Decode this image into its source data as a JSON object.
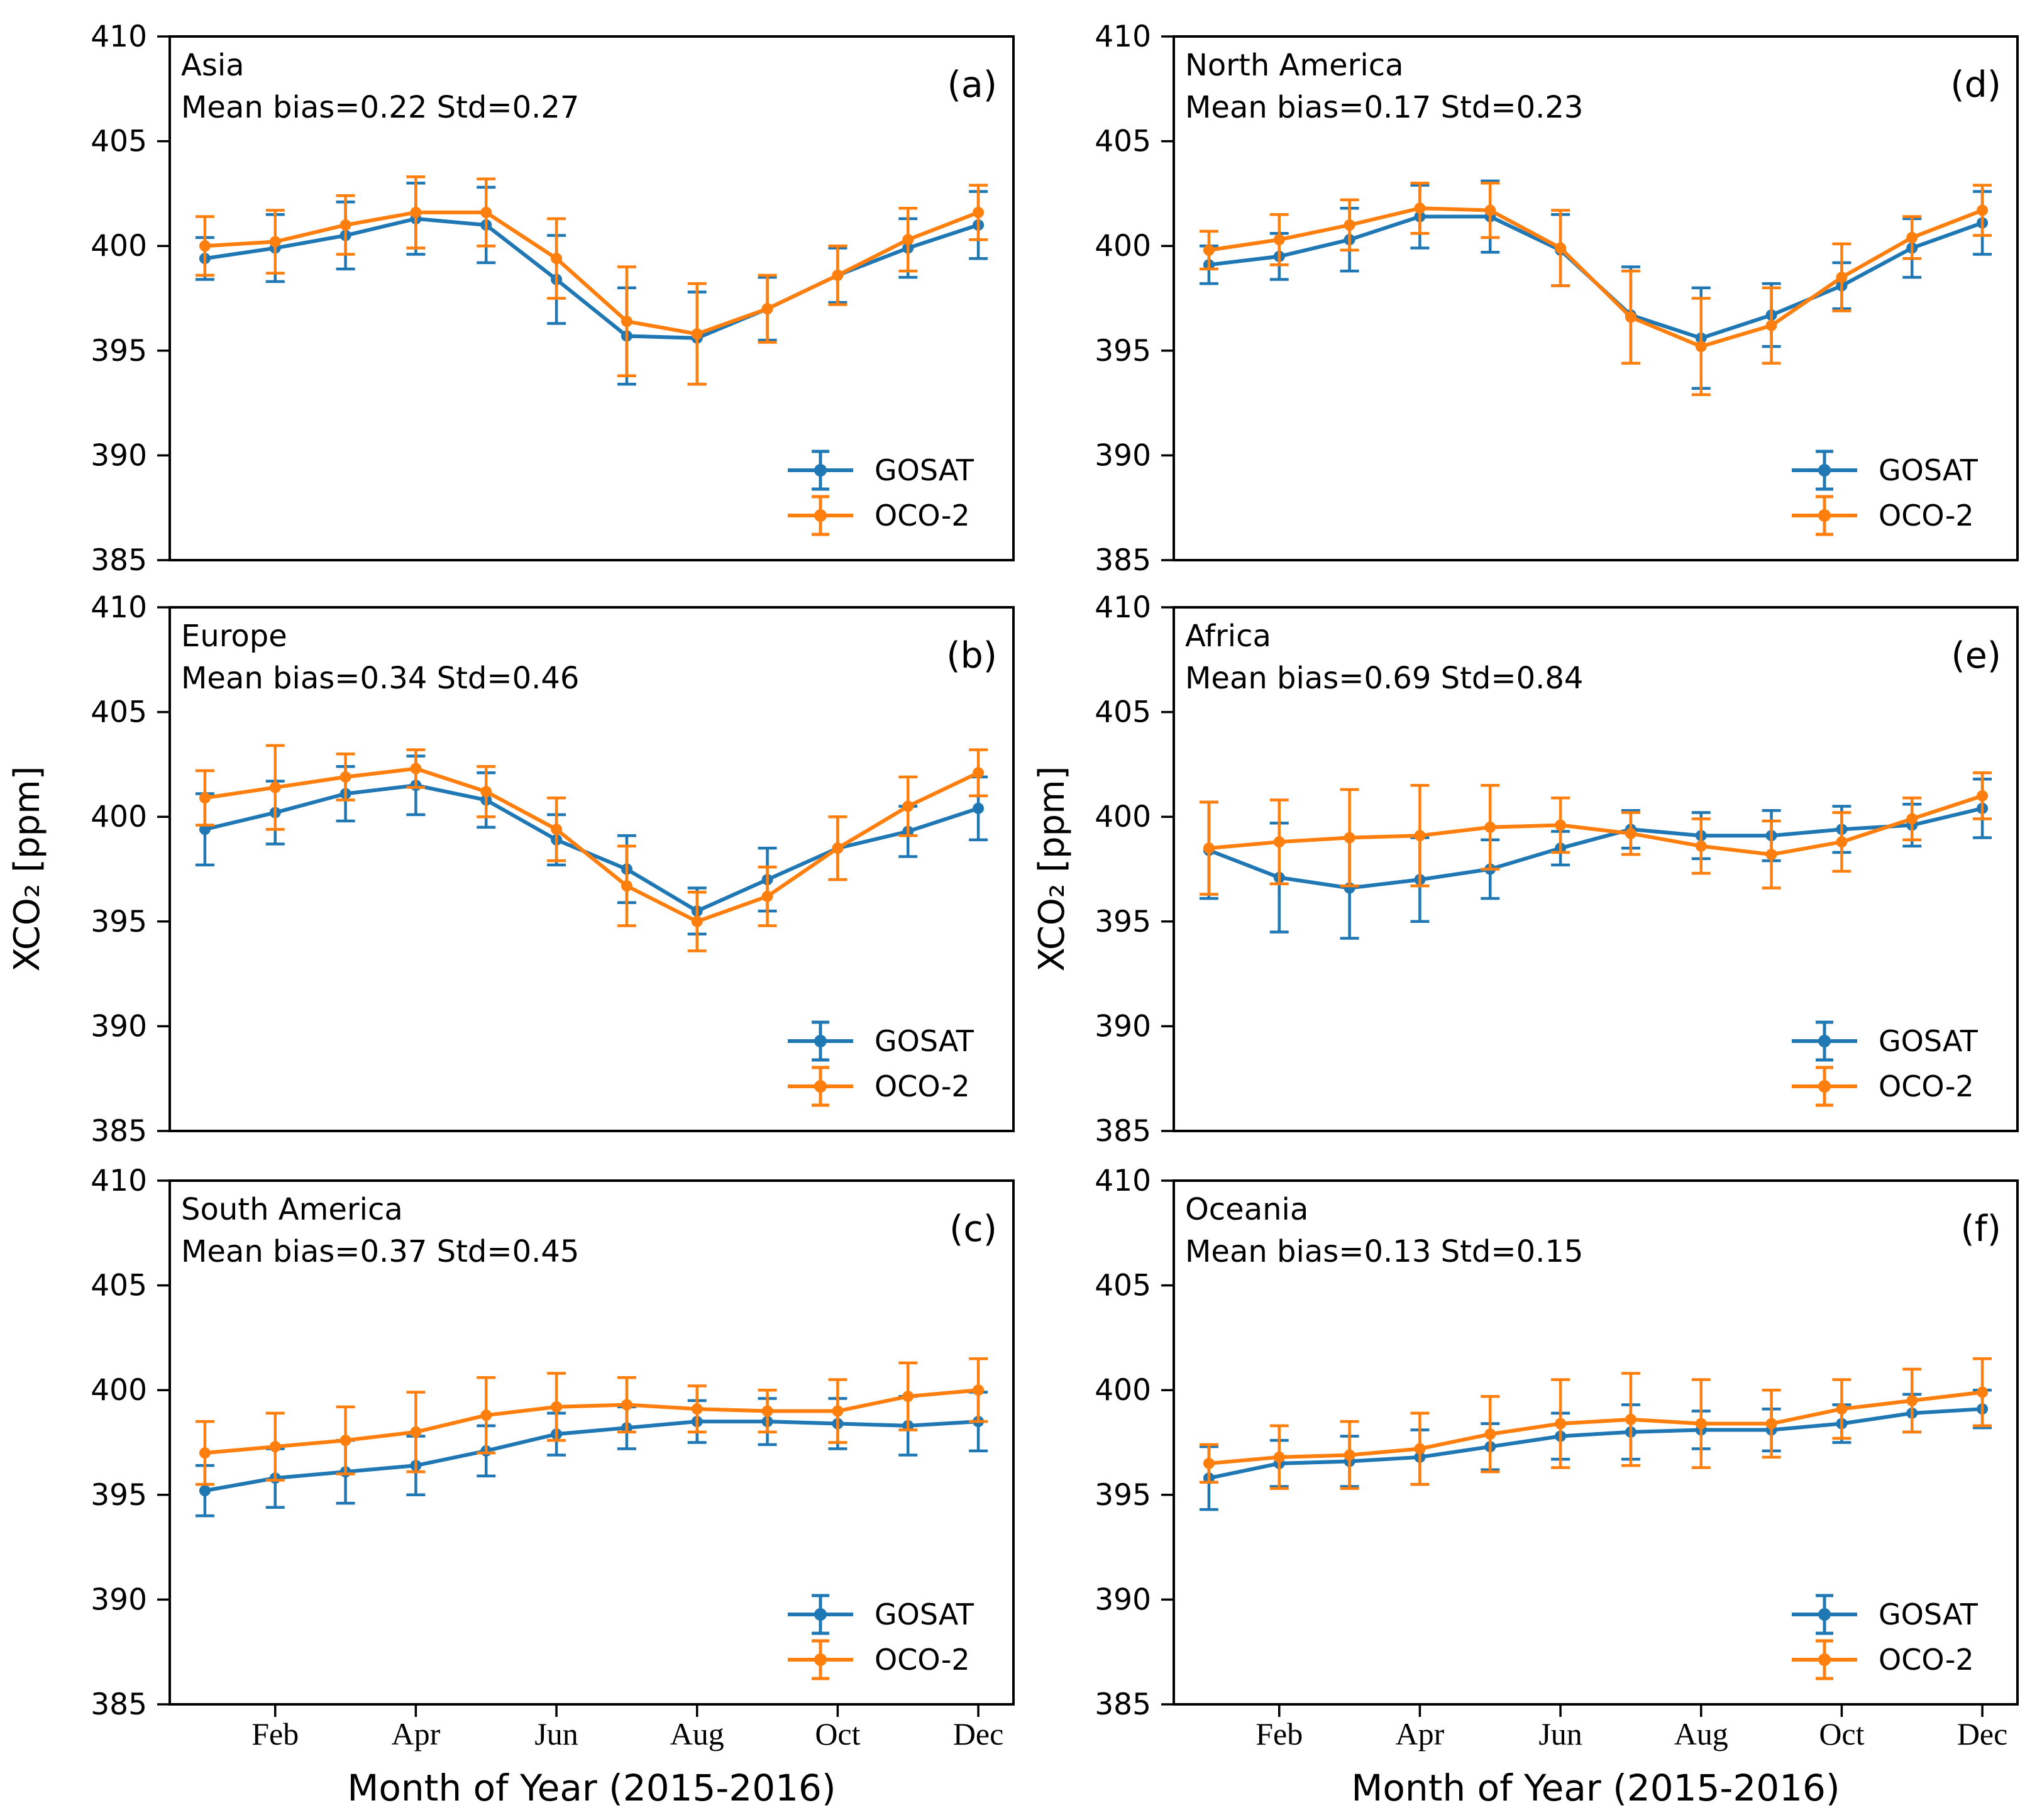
{
  "figure": {
    "ylabel": "XCO₂ [ppm]",
    "xlabel": "Month of Year (2015-2016)",
    "background": "#ffffff",
    "colors": {
      "gosat": "#1f77b4",
      "oco2": "#ff7f0e",
      "axis": "#000000"
    },
    "legend": {
      "gosat": "GOSAT",
      "oco2": "OCO-2",
      "position": "lower right"
    }
  },
  "chart_data": {
    "type": "line",
    "n_months": 12,
    "x_months": [
      1,
      2,
      3,
      4,
      5,
      6,
      7,
      8,
      9,
      10,
      11,
      12
    ],
    "xtick_months": [
      2,
      4,
      6,
      8,
      10,
      12
    ],
    "xticklabels": [
      "Feb",
      "Apr",
      "Jun",
      "Aug",
      "Oct",
      "Dec"
    ],
    "ylim": [
      385,
      410
    ],
    "yticks": [
      385,
      390,
      395,
      400,
      405,
      410
    ],
    "grid": "off",
    "xlabel": "Month of Year (2015-2016)",
    "ylabel": "XCO₂ [ppm]",
    "panels": [
      {
        "letter": "(a)",
        "region": "Asia",
        "stats": "Mean bias=0.22 Std=0.27",
        "mean_bias": 0.22,
        "std": 0.27,
        "series": [
          {
            "name": "GOSAT",
            "values": [
              399.4,
              399.9,
              400.5,
              401.3,
              401.0,
              398.4,
              395.7,
              395.6,
              397.0,
              398.6,
              399.9,
              401.0
            ],
            "yerr": [
              1.0,
              1.6,
              1.6,
              1.7,
              1.8,
              2.1,
              2.3,
              2.2,
              1.5,
              1.3,
              1.4,
              1.6
            ]
          },
          {
            "name": "OCO-2",
            "values": [
              400.0,
              400.2,
              401.0,
              401.6,
              401.6,
              399.4,
              396.4,
              395.8,
              397.0,
              398.6,
              400.3,
              401.6
            ],
            "yerr": [
              1.4,
              1.5,
              1.4,
              1.7,
              1.6,
              1.9,
              2.6,
              2.4,
              1.6,
              1.4,
              1.5,
              1.3
            ]
          }
        ]
      },
      {
        "letter": "(b)",
        "region": "Europe",
        "stats": "Mean bias=0.34 Std=0.46",
        "mean_bias": 0.34,
        "std": 0.46,
        "series": [
          {
            "name": "GOSAT",
            "values": [
              399.4,
              400.2,
              401.1,
              401.5,
              400.8,
              398.9,
              397.5,
              395.5,
              397.0,
              398.5,
              399.3,
              400.4
            ],
            "yerr": [
              1.7,
              1.5,
              1.3,
              1.4,
              1.3,
              1.2,
              1.6,
              1.1,
              1.5,
              1.5,
              1.2,
              1.5
            ]
          },
          {
            "name": "OCO-2",
            "values": [
              400.9,
              401.4,
              401.9,
              402.3,
              401.2,
              399.4,
              396.7,
              395.0,
              396.2,
              398.5,
              400.5,
              402.1
            ],
            "yerr": [
              1.3,
              2.0,
              1.1,
              0.9,
              1.2,
              1.5,
              1.9,
              1.4,
              1.4,
              1.5,
              1.4,
              1.1
            ]
          }
        ]
      },
      {
        "letter": "(c)",
        "region": "South America",
        "stats": "Mean bias=0.37 Std=0.45",
        "mean_bias": 0.37,
        "std": 0.45,
        "series": [
          {
            "name": "GOSAT",
            "values": [
              395.2,
              395.8,
              396.1,
              396.4,
              397.1,
              397.9,
              398.2,
              398.5,
              398.5,
              398.4,
              398.3,
              398.5
            ],
            "yerr": [
              1.2,
              1.4,
              1.5,
              1.4,
              1.2,
              1.0,
              1.0,
              1.0,
              1.1,
              1.2,
              1.4,
              1.4
            ]
          },
          {
            "name": "OCO-2",
            "values": [
              397.0,
              397.3,
              397.6,
              398.0,
              398.8,
              399.2,
              399.3,
              399.1,
              399.0,
              399.0,
              399.7,
              400.0
            ],
            "yerr": [
              1.5,
              1.6,
              1.6,
              1.9,
              1.8,
              1.6,
              1.3,
              1.1,
              1.0,
              1.5,
              1.6,
              1.5
            ]
          }
        ]
      },
      {
        "letter": "(d)",
        "region": "North America",
        "stats": "Mean bias=0.17 Std=0.23",
        "mean_bias": 0.17,
        "std": 0.23,
        "series": [
          {
            "name": "GOSAT",
            "values": [
              399.1,
              399.5,
              400.3,
              401.4,
              401.4,
              399.8,
              396.7,
              395.6,
              396.7,
              398.1,
              399.9,
              401.1
            ],
            "yerr": [
              0.9,
              1.1,
              1.5,
              1.5,
              1.7,
              1.7,
              2.3,
              2.4,
              1.5,
              1.1,
              1.4,
              1.5
            ]
          },
          {
            "name": "OCO-2",
            "values": [
              399.8,
              400.3,
              401.0,
              401.8,
              401.7,
              399.9,
              396.6,
              395.2,
              396.2,
              398.5,
              400.4,
              401.7
            ],
            "yerr": [
              0.9,
              1.2,
              1.2,
              1.2,
              1.3,
              1.8,
              2.2,
              2.3,
              1.8,
              1.6,
              1.0,
              1.2
            ]
          }
        ]
      },
      {
        "letter": "(e)",
        "region": "Africa",
        "stats": "Mean bias=0.69 Std=0.84",
        "mean_bias": 0.69,
        "std": 0.84,
        "series": [
          {
            "name": "GOSAT",
            "values": [
              398.4,
              397.1,
              396.6,
              397.0,
              397.5,
              398.5,
              399.4,
              399.1,
              399.1,
              399.4,
              399.6,
              400.4
            ],
            "yerr": [
              2.3,
              2.6,
              2.4,
              2.0,
              1.4,
              0.8,
              0.9,
              1.1,
              1.2,
              1.1,
              1.0,
              1.4
            ]
          },
          {
            "name": "OCO-2",
            "values": [
              398.5,
              398.8,
              399.0,
              399.1,
              399.5,
              399.6,
              399.2,
              398.6,
              398.2,
              398.8,
              399.9,
              401.0
            ],
            "yerr": [
              2.2,
              2.0,
              2.3,
              2.4,
              2.0,
              1.3,
              1.0,
              1.3,
              1.6,
              1.4,
              1.0,
              1.1
            ]
          }
        ]
      },
      {
        "letter": "(f)",
        "region": "Oceania",
        "stats": "Mean bias=0.13 Std=0.15",
        "mean_bias": 0.13,
        "std": 0.15,
        "series": [
          {
            "name": "GOSAT",
            "values": [
              395.8,
              396.5,
              396.6,
              396.8,
              397.3,
              397.8,
              398.0,
              398.1,
              398.1,
              398.4,
              398.9,
              399.1
            ],
            "yerr": [
              1.5,
              1.1,
              1.2,
              1.3,
              1.1,
              1.1,
              1.3,
              0.9,
              1.0,
              0.9,
              0.9,
              0.9
            ]
          },
          {
            "name": "OCO-2",
            "values": [
              396.5,
              396.8,
              396.9,
              397.2,
              397.9,
              398.4,
              398.6,
              398.4,
              398.4,
              399.1,
              399.5,
              399.9
            ],
            "yerr": [
              0.9,
              1.5,
              1.6,
              1.7,
              1.8,
              2.1,
              2.2,
              2.1,
              1.6,
              1.4,
              1.5,
              1.6
            ]
          }
        ]
      }
    ]
  }
}
